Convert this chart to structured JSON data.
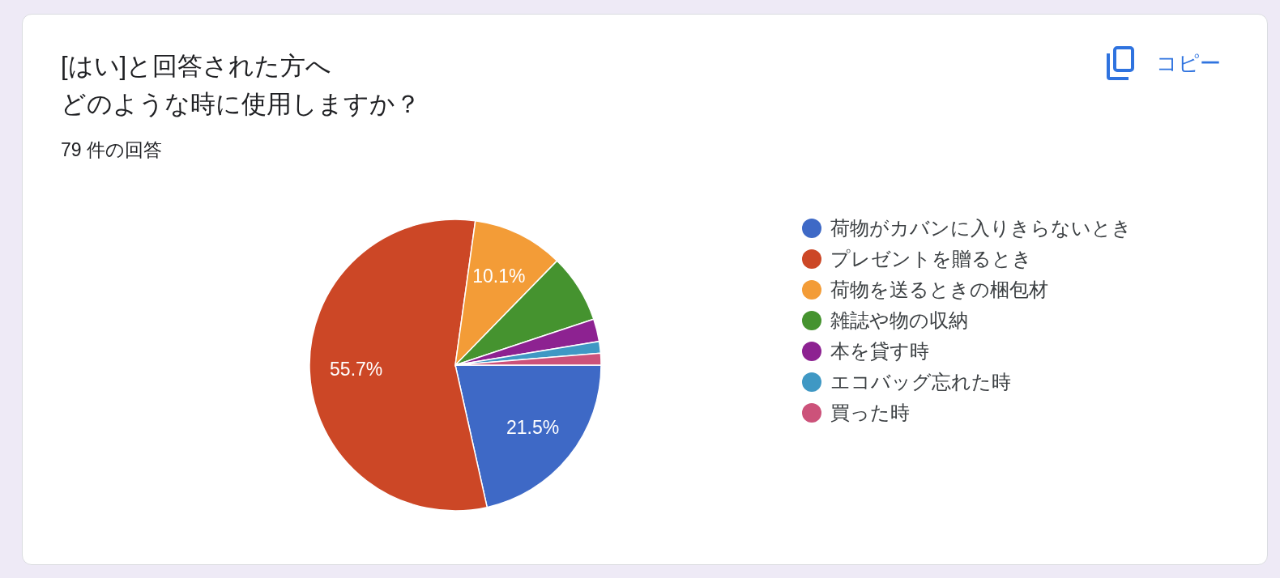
{
  "chart_data": {
    "type": "pie",
    "title": "[はい]と回答された方へどのような時に使用しますか？",
    "subtitle": "79 件の回答",
    "categories": [
      "荷物がカバンに入りきらないとき",
      "プレゼントを贈るとき",
      "荷物を送るときの梱包材",
      "雑誌や物の収納",
      "本を貸す時",
      "エコバッグ忘れた時",
      "買った時"
    ],
    "values": [
      21.5,
      55.7,
      10.1,
      7.6,
      2.5,
      1.3,
      1.3
    ],
    "colors": [
      "#3e69c6",
      "#cc4726",
      "#f39c37",
      "#45932f",
      "#8d2291",
      "#3f98c4",
      "#cc527a"
    ],
    "value_labels": [
      "21.5%",
      "55.7%",
      "10.1%",
      null,
      null,
      null,
      null
    ],
    "legend": "right",
    "annotations": [
      "コピー"
    ]
  }
}
